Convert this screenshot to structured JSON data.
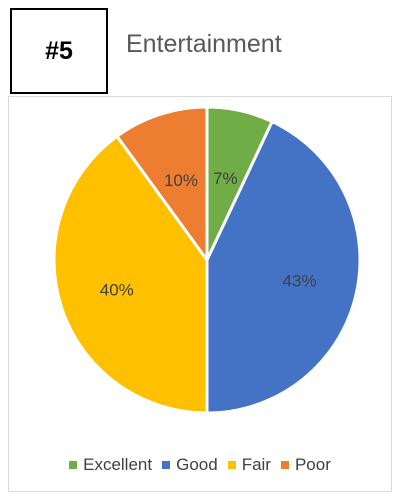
{
  "badge": "#5",
  "chart_data": {
    "type": "pie",
    "title": "Entertainment",
    "categories": [
      "Excellent",
      "Good",
      "Fair",
      "Poor"
    ],
    "values": [
      7,
      43,
      40,
      10
    ],
    "labels": [
      "7%",
      "43%",
      "40%",
      "10%"
    ],
    "colors": [
      "#70ad47",
      "#4472c4",
      "#ffc000",
      "#ed7d31"
    ],
    "legend_position": "bottom"
  }
}
